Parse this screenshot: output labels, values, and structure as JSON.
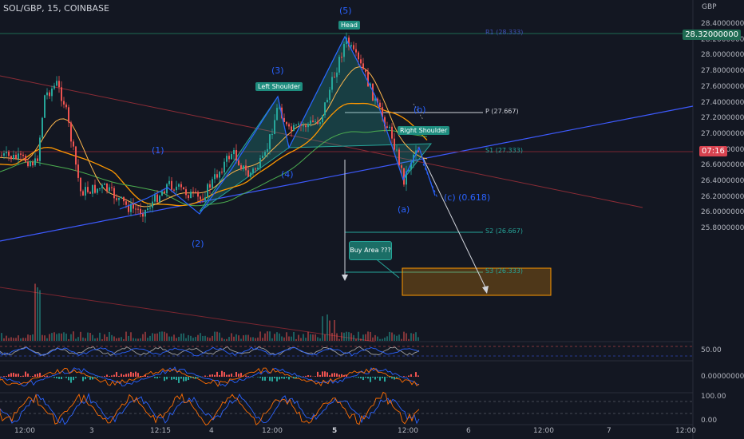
{
  "header": {
    "title": "SOL/GBP, 15, COINBASE"
  },
  "currency": "GBP",
  "price_axis": {
    "labels": [
      "28.40000000",
      "28.20000000",
      "28.00000000",
      "27.80000000",
      "27.60000000",
      "27.40000000",
      "27.20000000",
      "27.00000000",
      "26.80000000",
      "26.60000000",
      "26.40000000",
      "26.20000000",
      "26.00000000",
      "25.80000000"
    ],
    "current_high_tag": "28.32000000",
    "countdown_tag": "07:16"
  },
  "time_axis": {
    "labels": [
      "12:00",
      "3",
      "12:15",
      "4",
      "12:00",
      "5",
      "12:00",
      "6",
      "12:00",
      "7",
      "12:00"
    ]
  },
  "indicator_axes": {
    "rsi": "50.00",
    "macd": "0.00000000",
    "stoch_top": "100.00",
    "stoch_bottom": "0.00"
  },
  "pivots": {
    "r1": "R1 (28.333)",
    "p": "P (27.667)",
    "s1": "S1 (27.333)",
    "s2": "S2 (26.667)",
    "s3": "S3 (26.333)"
  },
  "pattern_labels": {
    "head": "Head",
    "left_shoulder": "Left Shoulder",
    "right_shoulder": "Right Shoulder",
    "buy_area": "Buy Area ???"
  },
  "wave_labels": {
    "w1": "(1)",
    "w2": "(2)",
    "w3": "(3)",
    "w4": "(4)",
    "w5": "(5)",
    "wa": "(a)",
    "wb": "(b)",
    "wc": "(c) (0.618)"
  },
  "colors": {
    "background": "#131722",
    "up": "#26a69a",
    "down": "#ef5350",
    "wave": "#2962ff",
    "accent_label": "#1e8d7f",
    "buy_zone": "#ff9800"
  }
}
